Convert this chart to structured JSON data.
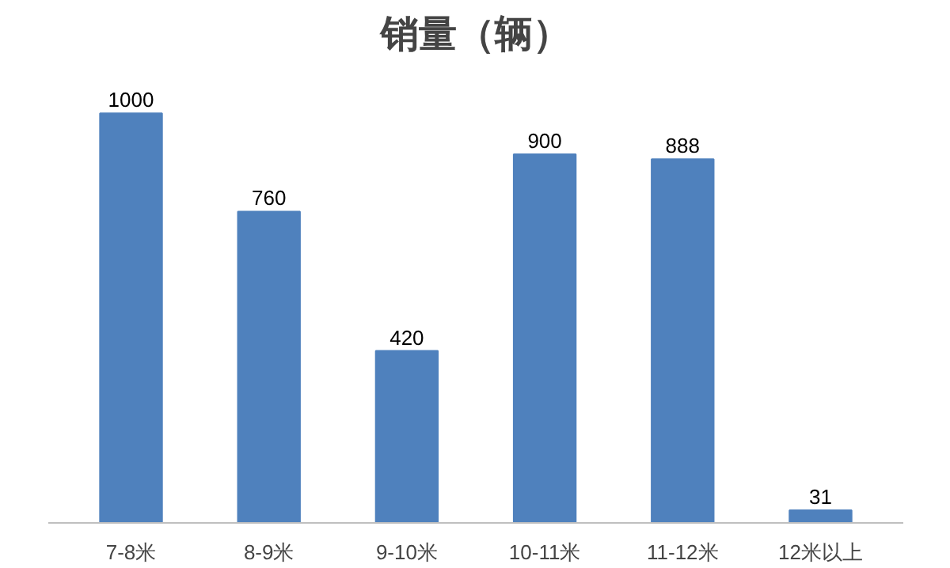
{
  "chart_data": {
    "type": "bar",
    "title": "销量（辆）",
    "categories": [
      "7-8米",
      "8-9米",
      "9-10米",
      "10-11米",
      "11-12米",
      "12米以上"
    ],
    "values": [
      1000,
      760,
      420,
      900,
      888,
      31
    ],
    "color": "#4f81bd",
    "data_labels": true
  }
}
